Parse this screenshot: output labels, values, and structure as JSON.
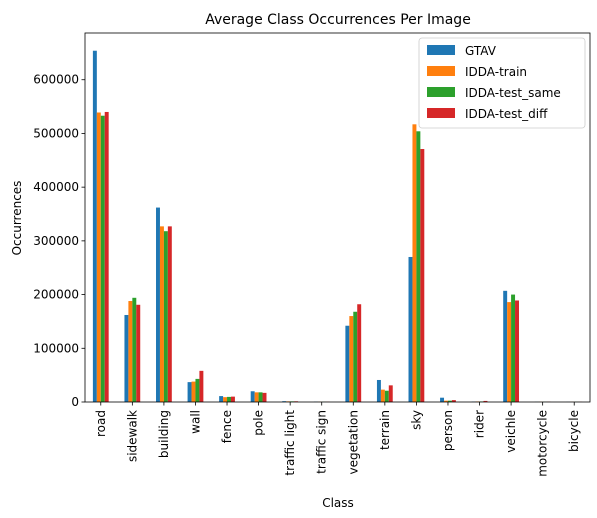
{
  "chart_data": {
    "type": "bar",
    "title": "Average Class Occurrences Per Image",
    "xlabel": "Class",
    "ylabel": "Occurrences",
    "ylim": [
      0,
      687000
    ],
    "yticks": [
      0,
      100000,
      200000,
      300000,
      400000,
      500000,
      600000
    ],
    "ytick_labels": [
      "0",
      "100000",
      "200000",
      "300000",
      "400000",
      "500000",
      "600000"
    ],
    "legend_position": "top-right",
    "grid": false,
    "categories": [
      "road",
      "sidewalk",
      "building",
      "wall",
      "fence",
      "pole",
      "traffic light",
      "traffic sign",
      "vegetation",
      "terrain",
      "sky",
      "person",
      "rider",
      "veichle",
      "motorcycle",
      "bicycle"
    ],
    "series": [
      {
        "name": "GTAV",
        "color": "#1f77b4",
        "values": [
          654000,
          162000,
          362000,
          37000,
          11000,
          20000,
          1500,
          500,
          142000,
          41000,
          270000,
          8000,
          700,
          207000,
          300,
          200
        ]
      },
      {
        "name": "IDDA-train",
        "color": "#ff7f0e",
        "values": [
          539000,
          188000,
          327000,
          38000,
          9000,
          18000,
          1200,
          400,
          160000,
          23000,
          517000,
          2500,
          1000,
          186000,
          400,
          300
        ]
      },
      {
        "name": "IDDA-test_same",
        "color": "#2ca02c",
        "values": [
          533000,
          194000,
          318000,
          43000,
          9500,
          18000,
          1200,
          400,
          168000,
          21000,
          504000,
          2500,
          1000,
          200000,
          400,
          300
        ]
      },
      {
        "name": "IDDA-test_diff",
        "color": "#d62728",
        "values": [
          540000,
          181000,
          327000,
          58000,
          10000,
          17000,
          1300,
          400,
          182000,
          31000,
          471000,
          3500,
          2000,
          189000,
          500,
          300
        ]
      }
    ]
  }
}
